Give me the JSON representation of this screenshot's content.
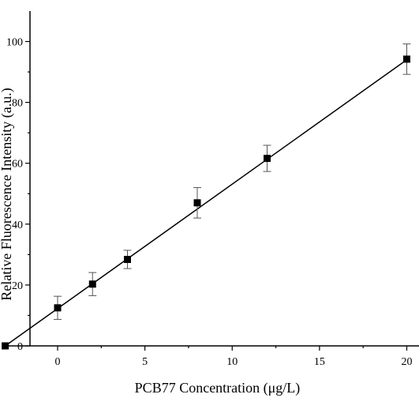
{
  "chart_data": {
    "type": "scatter",
    "title": "",
    "xlabel": "PCB77 Concentration (μg/L)",
    "ylabel": "Relative Fluorescence Intensity (a.u.)",
    "xlim": [
      -3.3,
      20.7
    ],
    "ylim": [
      0,
      110
    ],
    "x_ticks": [
      0,
      5,
      10,
      15,
      20
    ],
    "y_ticks": [
      0,
      20,
      40,
      60,
      80,
      100
    ],
    "grid": false,
    "legend": "none",
    "series": [
      {
        "marker": "square",
        "color": "#000000",
        "points": [
          {
            "x": -3,
            "y": 0,
            "err": 0
          },
          {
            "x": 0,
            "y": 12.5,
            "err": 3.8
          },
          {
            "x": 2,
            "y": 20.3,
            "err": 3.8
          },
          {
            "x": 4,
            "y": 28.4,
            "err": 3.0
          },
          {
            "x": 8,
            "y": 47.0,
            "err": 5.0
          },
          {
            "x": 12,
            "y": 61.6,
            "err": 4.3
          },
          {
            "x": 20,
            "y": 94.2,
            "err": 5.0
          }
        ]
      }
    ],
    "fit_line": {
      "x": [
        -3,
        20
      ],
      "y": [
        0,
        94.0
      ]
    }
  }
}
